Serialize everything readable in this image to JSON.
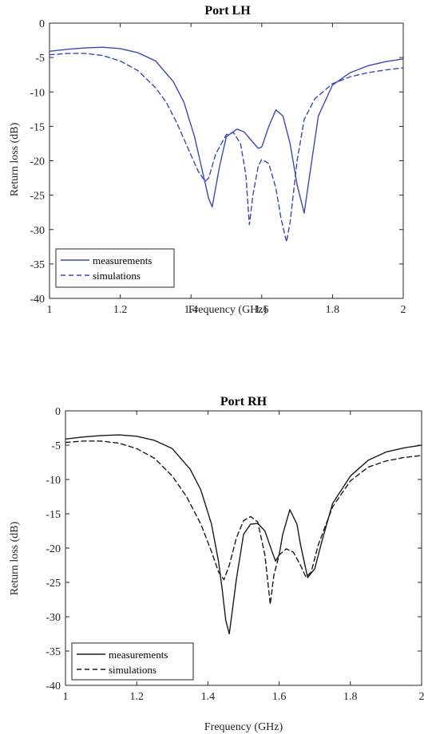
{
  "chart_data": [
    {
      "type": "line",
      "title": "Port LH",
      "xlabel": "Frequency (GHz)",
      "ylabel": "Return loss (dB)",
      "xlim": [
        1,
        2
      ],
      "ylim": [
        -40,
        0
      ],
      "xticks": [
        "1",
        "1.2",
        "1.4",
        "1.6",
        "1.8",
        "2"
      ],
      "yticks": [
        "0",
        "-5",
        "-10",
        "-15",
        "-20",
        "-25",
        "-30",
        "-35",
        "-40"
      ],
      "grid": false,
      "legend_position": "bottom-left",
      "series_color": "#3a48b4",
      "series": [
        {
          "name": "measurements",
          "style": "solid",
          "x": [
            1.0,
            1.05,
            1.1,
            1.15,
            1.2,
            1.25,
            1.3,
            1.35,
            1.38,
            1.41,
            1.43,
            1.45,
            1.46,
            1.48,
            1.5,
            1.53,
            1.55,
            1.57,
            1.59,
            1.6,
            1.62,
            1.64,
            1.66,
            1.68,
            1.7,
            1.72,
            1.74,
            1.76,
            1.8,
            1.85,
            1.9,
            1.95,
            2.0
          ],
          "y": [
            -4.1,
            -3.8,
            -3.6,
            -3.5,
            -3.7,
            -4.3,
            -5.5,
            -8.5,
            -11.5,
            -16.5,
            -21.0,
            -25.5,
            -26.7,
            -21.0,
            -16.5,
            -15.4,
            -15.8,
            -17.0,
            -18.2,
            -18.0,
            -15.0,
            -12.6,
            -13.5,
            -17.5,
            -23.5,
            -27.6,
            -20.5,
            -13.5,
            -9.0,
            -7.2,
            -6.2,
            -5.6,
            -5.2
          ]
        },
        {
          "name": "simulations",
          "style": "dashed",
          "x": [
            1.0,
            1.05,
            1.1,
            1.15,
            1.2,
            1.25,
            1.3,
            1.33,
            1.36,
            1.39,
            1.42,
            1.44,
            1.45,
            1.47,
            1.5,
            1.52,
            1.54,
            1.555,
            1.565,
            1.575,
            1.59,
            1.6,
            1.62,
            1.64,
            1.655,
            1.67,
            1.68,
            1.7,
            1.72,
            1.75,
            1.8,
            1.85,
            1.9,
            1.95,
            2.0
          ],
          "y": [
            -4.6,
            -4.4,
            -4.4,
            -4.7,
            -5.5,
            -6.9,
            -9.4,
            -11.5,
            -14.5,
            -18.0,
            -21.5,
            -23.0,
            -22.5,
            -19.0,
            -16.2,
            -15.9,
            -17.5,
            -22.0,
            -29.3,
            -25.0,
            -20.8,
            -19.8,
            -20.4,
            -24.0,
            -28.5,
            -31.8,
            -29.0,
            -20.0,
            -14.0,
            -11.0,
            -8.8,
            -7.8,
            -7.2,
            -6.8,
            -6.5
          ]
        }
      ]
    },
    {
      "type": "line",
      "title": "Port RH",
      "xlabel": "Frequency (GHz)",
      "ylabel": "Return loss (dB)",
      "xlim": [
        1,
        2
      ],
      "ylim": [
        -40,
        0
      ],
      "xticks": [
        "1",
        "1.2",
        "1.4",
        "1.6",
        "1.8",
        "2"
      ],
      "yticks": [
        "0",
        "-5",
        "-10",
        "-15",
        "-20",
        "-25",
        "-30",
        "-35",
        "-40"
      ],
      "grid": false,
      "legend_position": "bottom-left",
      "series_color": "#1a1a1a",
      "series": [
        {
          "name": "measurements",
          "style": "solid",
          "x": [
            1.0,
            1.05,
            1.1,
            1.15,
            1.2,
            1.25,
            1.3,
            1.35,
            1.38,
            1.41,
            1.43,
            1.44,
            1.45,
            1.46,
            1.48,
            1.5,
            1.52,
            1.54,
            1.56,
            1.58,
            1.59,
            1.6,
            1.61,
            1.63,
            1.65,
            1.66,
            1.68,
            1.7,
            1.72,
            1.75,
            1.8,
            1.85,
            1.9,
            1.95,
            2.0
          ],
          "y": [
            -4.1,
            -3.8,
            -3.6,
            -3.5,
            -3.7,
            -4.3,
            -5.5,
            -8.5,
            -11.5,
            -16.5,
            -22.0,
            -26.0,
            -30.5,
            -32.5,
            -24.5,
            -18.0,
            -16.5,
            -16.4,
            -17.5,
            -20.5,
            -21.9,
            -21.0,
            -18.0,
            -14.4,
            -16.5,
            -19.5,
            -24.3,
            -23.0,
            -19.0,
            -13.5,
            -9.5,
            -7.2,
            -6.0,
            -5.4,
            -5.0
          ]
        },
        {
          "name": "simulations",
          "style": "dashed",
          "x": [
            1.0,
            1.05,
            1.1,
            1.15,
            1.2,
            1.25,
            1.3,
            1.34,
            1.38,
            1.41,
            1.43,
            1.445,
            1.46,
            1.48,
            1.5,
            1.52,
            1.54,
            1.56,
            1.575,
            1.585,
            1.6,
            1.62,
            1.64,
            1.66,
            1.675,
            1.69,
            1.71,
            1.75,
            1.8,
            1.85,
            1.9,
            1.95,
            2.0
          ],
          "y": [
            -4.6,
            -4.4,
            -4.4,
            -4.7,
            -5.5,
            -6.9,
            -9.5,
            -12.5,
            -16.5,
            -20.5,
            -23.5,
            -24.6,
            -22.5,
            -18.5,
            -16.0,
            -15.4,
            -16.2,
            -21.0,
            -28.2,
            -24.0,
            -21.0,
            -20.1,
            -20.6,
            -22.5,
            -24.2,
            -23.5,
            -19.5,
            -14.0,
            -10.2,
            -8.2,
            -7.3,
            -6.8,
            -6.5
          ]
        }
      ]
    }
  ]
}
